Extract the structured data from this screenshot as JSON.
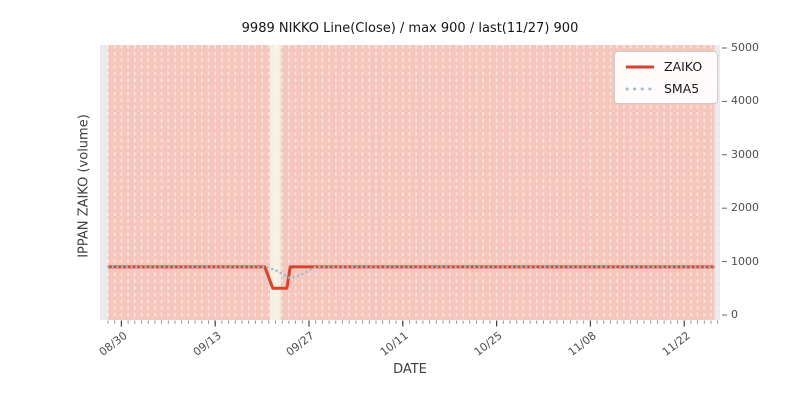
{
  "chart_data": {
    "type": "line",
    "title": "9989 NIKKO Line(Close) / max 900 / last(11/27) 900",
    "xlabel": "DATE",
    "ylabel": "IPPAN ZAIKO (volume)",
    "ylim": [
      0,
      5000
    ],
    "yticks": [
      0,
      1000,
      2000,
      3000,
      4000,
      5000
    ],
    "grid": "vertical dashed white line per day, no horizontal gridlines",
    "x_axis": {
      "unit": "days",
      "day0_date": "08/28",
      "last_date": "11/27",
      "days_total": 91,
      "major_ticks": [
        {
          "label": "08/30",
          "day": 2
        },
        {
          "label": "09/13",
          "day": 16
        },
        {
          "label": "09/27",
          "day": 30
        },
        {
          "label": "10/11",
          "day": 44
        },
        {
          "label": "10/25",
          "day": 58
        },
        {
          "label": "11/08",
          "day": 72
        },
        {
          "label": "11/22",
          "day": 86
        }
      ]
    },
    "series": [
      {
        "name": "ZAIKO",
        "style": "solid",
        "color": "#d8432c",
        "width": 3,
        "summary": "Constant at 900 from 08/28 through 11/27 except a short dip to 500 around 09/22-09/24; max 900, last value on 11/27 is 900",
        "points": [
          [
            0,
            900
          ],
          [
            23.4,
            900
          ],
          [
            24.6,
            500
          ],
          [
            26.7,
            500
          ],
          [
            27.2,
            900
          ],
          [
            90.5,
            900
          ]
        ]
      },
      {
        "name": "SMA5",
        "style": "dotted",
        "color": "#9fb9d6",
        "width": 2.4,
        "summary": "5-day moving average; equals 900 (overlapping ZAIKO line) except V-shaped dip bottoming near 700 around 09/25",
        "points": [
          [
            0,
            900
          ],
          [
            23.5,
            900
          ],
          [
            25,
            840
          ],
          [
            26,
            770
          ],
          [
            27,
            700
          ],
          [
            27.8,
            710
          ],
          [
            28.6,
            740
          ],
          [
            29.4,
            790
          ],
          [
            30.2,
            850
          ],
          [
            31,
            900
          ],
          [
            90.5,
            900
          ]
        ]
      }
    ],
    "background": {
      "plot_bg": "#e9e9ee",
      "band_color": "#f4c6bc",
      "band_start_day": 0,
      "band_end_day": 90.5,
      "band_note": "continuous salmon shading behind entire data range",
      "gap_color": "#f6efe2",
      "gap_days": [
        24.2,
        25.8
      ],
      "gap_note": "cream band (no salmon shading) around 09/22",
      "grid_color": "rgba(255,255,255,0.55)"
    },
    "legend": {
      "position": "upper right",
      "entries": [
        "ZAIKO",
        "SMA5"
      ]
    }
  }
}
